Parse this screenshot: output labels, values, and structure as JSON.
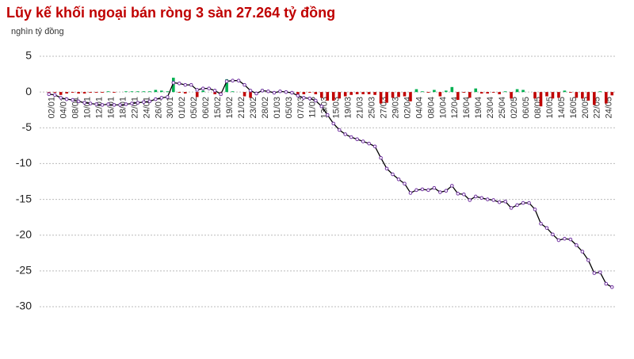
{
  "chart_data": {
    "type": "bar",
    "title": "Lũy kế khối ngoại bán ròng 3 sàn 27.264 tỷ đồng",
    "subtitle": "nghìn tỷ đồng",
    "categories": [
      "02/01",
      null,
      "04/01",
      null,
      "08/01",
      null,
      "10/01",
      null,
      "12/01",
      null,
      "16/01",
      null,
      "18/01",
      null,
      "22/01",
      null,
      "24/01",
      null,
      "26/01",
      null,
      "30/01",
      null,
      "01/02",
      null,
      "05/02",
      null,
      "06/02",
      null,
      "15/02",
      null,
      "19/02",
      null,
      "21/02",
      null,
      "23/02",
      null,
      "28/02",
      null,
      "01/03",
      null,
      "05/03",
      null,
      "07/03",
      null,
      "11/03",
      null,
      "13/03",
      null,
      "15/03",
      null,
      "19/03",
      null,
      "21/03",
      null,
      "25/03",
      null,
      "27/03",
      null,
      "29/03",
      null,
      "02/04",
      null,
      "04/04",
      null,
      "08/04",
      null,
      "10/04",
      null,
      "12/04",
      null,
      "16/04",
      null,
      "19/04",
      null,
      "23/04",
      null,
      "25/04",
      null,
      "02/05",
      null,
      "06/05",
      null,
      "08/05",
      null,
      "10/05",
      null,
      "14/05",
      null,
      "16/05",
      null,
      "20/05",
      null,
      "22/05",
      null,
      "24/05",
      null
    ],
    "series": [
      {
        "type": "bar",
        "color": "#00b050",
        "negative_color": "#c00000",
        "values": [
          -0.3,
          -0.1,
          -0.4,
          -0.2,
          -0.1,
          -0.2,
          -0.2,
          -0.1,
          -0.1,
          -0.1,
          0.1,
          -0.1,
          0,
          0.1,
          0.1,
          0.1,
          0.1,
          0.1,
          0.3,
          0.2,
          0.1,
          2.0,
          -0.1,
          -0.2,
          0,
          -0.7,
          0.2,
          0,
          -0.3,
          -0.5,
          1.8,
          0.1,
          0,
          -0.6,
          -0.8,
          -0.4,
          0.4,
          -0.1,
          -0.2,
          0.2,
          -0.1,
          -0.1,
          -0.4,
          -0.3,
          -0.1,
          -0.3,
          -0.8,
          -1.2,
          -1.2,
          -0.9,
          -0.6,
          -0.4,
          -0.3,
          -0.3,
          -0.3,
          -0.4,
          -1.6,
          -1.5,
          -0.8,
          -0.7,
          -0.6,
          -1.3,
          0.4,
          0.1,
          -0.1,
          0.3,
          -0.6,
          0.2,
          0.7,
          -1.1,
          -0.1,
          -0.8,
          0.5,
          -0.2,
          -0.2,
          -0.1,
          -0.3,
          0.1,
          -0.9,
          0.4,
          0.3,
          0,
          -0.9,
          -2.0,
          -0.6,
          -0.9,
          -0.8,
          0.2,
          -0.1,
          -0.8,
          -0.9,
          -1.2,
          -1.8,
          0.1,
          -1.6,
          -0.464
        ]
      },
      {
        "type": "line",
        "color": "#000000",
        "marker_color": "#7030a0",
        "values": [
          -0.3,
          -0.4,
          -0.8,
          -1.0,
          -1.1,
          -1.3,
          -1.5,
          -1.6,
          -1.7,
          -1.8,
          -1.7,
          -1.8,
          -1.8,
          -1.7,
          -1.6,
          -1.5,
          -1.4,
          -1.3,
          -1.0,
          -0.8,
          -0.7,
          1.3,
          1.2,
          1.0,
          1.0,
          0.3,
          0.5,
          0.5,
          0.2,
          -0.3,
          1.5,
          1.6,
          1.6,
          1.0,
          0.2,
          -0.2,
          0.2,
          0.1,
          -0.1,
          0.1,
          0.0,
          -0.1,
          -0.5,
          -0.8,
          -0.9,
          -1.2,
          -2.0,
          -3.2,
          -4.4,
          -5.3,
          -5.9,
          -6.3,
          -6.6,
          -6.9,
          -7.2,
          -7.6,
          -9.2,
          -10.7,
          -11.5,
          -12.2,
          -12.8,
          -14.1,
          -13.7,
          -13.6,
          -13.7,
          -13.4,
          -14.0,
          -13.8,
          -13.1,
          -14.2,
          -14.3,
          -15.1,
          -14.6,
          -14.8,
          -15.0,
          -15.1,
          -15.4,
          -15.3,
          -16.2,
          -15.8,
          -15.5,
          -15.5,
          -16.4,
          -18.4,
          -19.0,
          -19.9,
          -20.7,
          -20.5,
          -20.6,
          -21.4,
          -22.3,
          -23.5,
          -25.3,
          -25.2,
          -26.8,
          -27.264
        ]
      }
    ],
    "ylim": [
      -30,
      5
    ],
    "yticks": [
      5,
      0,
      -5,
      -10,
      -15,
      -20,
      -25,
      -30
    ],
    "grid": true
  }
}
